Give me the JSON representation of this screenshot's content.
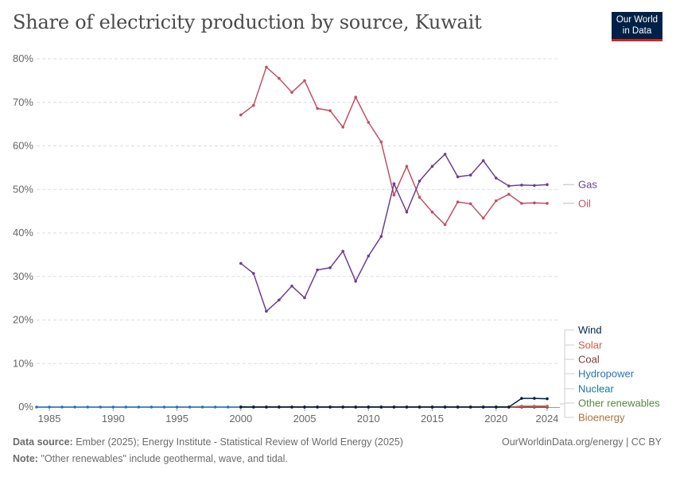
{
  "header": {
    "title": "Share of electricity production by source, Kuwait",
    "logo_line1": "Our World",
    "logo_line2": "in Data"
  },
  "footer": {
    "source_label": "Data source:",
    "source_text": "Ember (2025); Energy Institute - Statistical Review of World Energy (2025)",
    "note_label": "Note:",
    "note_text": "\"Other renewables\" include geothermal, wave, and tidal.",
    "license": "OurWorldinData.org/energy | CC BY"
  },
  "chart_data": {
    "type": "line",
    "title": "Share of electricity production by source, Kuwait",
    "xlim": [
      1984,
      2025
    ],
    "ylim": [
      0,
      80
    ],
    "x_ticks": [
      "1985",
      "1990",
      "1995",
      "2000",
      "2005",
      "2010",
      "2015",
      "2020",
      "2024"
    ],
    "x_tick_values": [
      1985,
      1990,
      1995,
      2000,
      2005,
      2010,
      2015,
      2020,
      2024
    ],
    "y_ticks": [
      "0%",
      "10%",
      "20%",
      "30%",
      "40%",
      "50%",
      "60%",
      "70%",
      "80%"
    ],
    "y_tick_values": [
      0,
      10,
      20,
      30,
      40,
      50,
      60,
      70,
      80
    ],
    "grid": "horizontal dashed",
    "legend": "right, end-of-line labels",
    "series": [
      {
        "name": "Gas",
        "color": "#6d3e91",
        "x": [
          2000,
          2001,
          2002,
          2003,
          2004,
          2005,
          2006,
          2007,
          2008,
          2009,
          2010,
          2011,
          2012,
          2013,
          2014,
          2015,
          2016,
          2017,
          2018,
          2019,
          2020,
          2021,
          2022,
          2023,
          2024
        ],
        "y": [
          33.0,
          30.7,
          22.0,
          24.6,
          27.8,
          25.1,
          31.5,
          32.0,
          35.8,
          28.9,
          34.7,
          39.2,
          51.3,
          44.8,
          51.9,
          55.3,
          58.1,
          52.9,
          53.3,
          56.6,
          52.6,
          50.8,
          51.0,
          50.9,
          51.1
        ]
      },
      {
        "name": "Oil",
        "color": "#c15065",
        "x": [
          2000,
          2001,
          2002,
          2003,
          2004,
          2005,
          2006,
          2007,
          2008,
          2009,
          2010,
          2011,
          2012,
          2013,
          2014,
          2015,
          2016,
          2017,
          2018,
          2019,
          2020,
          2021,
          2022,
          2023,
          2024
        ],
        "y": [
          67.1,
          69.3,
          78.1,
          75.5,
          72.3,
          75.0,
          68.6,
          68.1,
          64.3,
          71.2,
          65.4,
          60.9,
          48.7,
          55.3,
          48.2,
          44.8,
          41.9,
          47.1,
          46.7,
          43.4,
          47.4,
          48.9,
          46.8,
          46.9,
          46.8
        ]
      },
      {
        "name": "Wind",
        "color": "#002147",
        "x": [
          2000,
          2001,
          2002,
          2003,
          2004,
          2005,
          2006,
          2007,
          2008,
          2009,
          2010,
          2011,
          2012,
          2013,
          2014,
          2015,
          2016,
          2017,
          2018,
          2019,
          2020,
          2021,
          2022,
          2023,
          2024
        ],
        "y": [
          0,
          0,
          0,
          0,
          0,
          0,
          0,
          0,
          0,
          0,
          0,
          0,
          0,
          0,
          0,
          0,
          0,
          0,
          0,
          0,
          0,
          0,
          2.0,
          2.0,
          1.9
        ]
      },
      {
        "name": "Solar",
        "color": "#c75e51",
        "x": [
          2000,
          2001,
          2002,
          2003,
          2004,
          2005,
          2006,
          2007,
          2008,
          2009,
          2010,
          2011,
          2012,
          2013,
          2014,
          2015,
          2016,
          2017,
          2018,
          2019,
          2020,
          2021,
          2022,
          2023,
          2024
        ],
        "y": [
          0,
          0,
          0,
          0,
          0,
          0,
          0,
          0,
          0,
          0,
          0,
          0,
          0,
          0,
          0,
          0,
          0,
          0,
          0,
          0,
          0,
          0,
          0.2,
          0.2,
          0.2
        ]
      },
      {
        "name": "Coal",
        "color": "#7e3b3b",
        "x": [
          2000,
          2001,
          2002,
          2003,
          2004,
          2005,
          2006,
          2007,
          2008,
          2009,
          2010,
          2011,
          2012,
          2013,
          2014,
          2015,
          2016,
          2017,
          2018,
          2019,
          2020,
          2021,
          2022,
          2023,
          2024
        ],
        "y": [
          0,
          0,
          0,
          0,
          0,
          0,
          0,
          0,
          0,
          0,
          0,
          0,
          0,
          0,
          0,
          0,
          0,
          0,
          0,
          0,
          0,
          0,
          0,
          0,
          0
        ]
      },
      {
        "name": "Hydropower",
        "color": "#2c70b5",
        "x": [
          1984,
          1985,
          1986,
          1987,
          1988,
          1989,
          1990,
          1991,
          1992,
          1993,
          1994,
          1995,
          1996,
          1997,
          1998,
          1999,
          2000,
          2001,
          2002,
          2003,
          2004,
          2005,
          2006,
          2007,
          2008,
          2009,
          2010,
          2011,
          2012,
          2013,
          2014,
          2015,
          2016,
          2017,
          2018,
          2019,
          2020,
          2021,
          2022,
          2023,
          2024
        ],
        "y": [
          0,
          0,
          0,
          0,
          0,
          0,
          0,
          0,
          0,
          0,
          0,
          0,
          0,
          0,
          0,
          0,
          0,
          0,
          0,
          0,
          0,
          0,
          0,
          0,
          0,
          0,
          0,
          0,
          0,
          0,
          0,
          0,
          0,
          0,
          0,
          0,
          0,
          0,
          0,
          0,
          0
        ]
      },
      {
        "name": "Nuclear",
        "color": "#19778f",
        "x": [
          2000,
          2001,
          2002,
          2003,
          2004,
          2005,
          2006,
          2007,
          2008,
          2009,
          2010,
          2011,
          2012,
          2013,
          2014,
          2015,
          2016,
          2017,
          2018,
          2019,
          2020,
          2021,
          2022,
          2023,
          2024
        ],
        "y": [
          0,
          0,
          0,
          0,
          0,
          0,
          0,
          0,
          0,
          0,
          0,
          0,
          0,
          0,
          0,
          0,
          0,
          0,
          0,
          0,
          0,
          0,
          0,
          0,
          0
        ]
      },
      {
        "name": "Other renewables",
        "color": "#57873f",
        "x": [
          2000,
          2001,
          2002,
          2003,
          2004,
          2005,
          2006,
          2007,
          2008,
          2009,
          2010,
          2011,
          2012,
          2013,
          2014,
          2015,
          2016,
          2017,
          2018,
          2019,
          2020,
          2021,
          2022,
          2023,
          2024
        ],
        "y": [
          0,
          0,
          0,
          0,
          0,
          0,
          0,
          0,
          0,
          0,
          0,
          0,
          0,
          0,
          0,
          0,
          0,
          0,
          0,
          0,
          0,
          0,
          0,
          0,
          0
        ]
      },
      {
        "name": "Bioenergy",
        "color": "#a8723c",
        "x": [
          2000,
          2001,
          2002,
          2003,
          2004,
          2005,
          2006,
          2007,
          2008,
          2009,
          2010,
          2011,
          2012,
          2013,
          2014,
          2015,
          2016,
          2017,
          2018,
          2019,
          2020,
          2021,
          2022,
          2023,
          2024
        ],
        "y": [
          0,
          0,
          0,
          0,
          0,
          0,
          0,
          0,
          0,
          0,
          0,
          0,
          0,
          0,
          0,
          0,
          0,
          0,
          0,
          0,
          0,
          0,
          0,
          0,
          0
        ]
      }
    ]
  }
}
